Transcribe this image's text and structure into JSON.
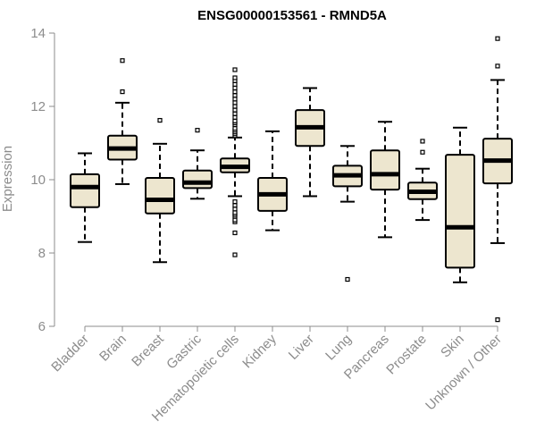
{
  "chart_data": {
    "type": "boxplot",
    "title": "ENSG00000153561 - RMND5A",
    "xlabel": "",
    "ylabel": "Expression",
    "ylim": [
      6,
      14
    ],
    "yticks": [
      6,
      8,
      10,
      12,
      14
    ],
    "box_fill": "#ede6cf",
    "box_stroke": "#000000",
    "categories": [
      "Bladder",
      "Brain",
      "Breast",
      "Gastric",
      "Hematopoietic cells",
      "Kidney",
      "Liver",
      "Lung",
      "Pancreas",
      "Prostate",
      "Skin",
      "Unknown / Other"
    ],
    "boxes": [
      {
        "name": "Bladder",
        "whisker_low": 8.3,
        "q1": 9.25,
        "median": 9.8,
        "q3": 10.15,
        "whisker_high": 10.72,
        "outliers": []
      },
      {
        "name": "Brain",
        "whisker_low": 9.88,
        "q1": 10.55,
        "median": 10.85,
        "q3": 11.2,
        "whisker_high": 12.1,
        "outliers": [
          12.4,
          13.25
        ]
      },
      {
        "name": "Breast",
        "whisker_low": 7.75,
        "q1": 9.08,
        "median": 9.45,
        "q3": 10.05,
        "whisker_high": 10.98,
        "outliers": [
          11.62
        ]
      },
      {
        "name": "Gastric",
        "whisker_low": 9.48,
        "q1": 9.77,
        "median": 9.92,
        "q3": 10.25,
        "whisker_high": 10.8,
        "outliers": [
          11.35
        ]
      },
      {
        "name": "Hematopoietic cells",
        "whisker_low": 9.55,
        "q1": 10.2,
        "median": 10.35,
        "q3": 10.58,
        "whisker_high": 11.15,
        "outliers": [
          7.95,
          8.55,
          8.85,
          8.9,
          9.0,
          9.05,
          9.1,
          9.2,
          9.3,
          9.4,
          11.2,
          11.25,
          11.3,
          11.35,
          11.4,
          11.5,
          11.55,
          11.6,
          11.7,
          11.8,
          11.9,
          12.0,
          12.1,
          12.2,
          12.3,
          12.4,
          12.5,
          12.6,
          12.7,
          12.78,
          13.0
        ]
      },
      {
        "name": "Kidney",
        "whisker_low": 8.62,
        "q1": 9.15,
        "median": 9.6,
        "q3": 10.05,
        "whisker_high": 11.32,
        "outliers": []
      },
      {
        "name": "Liver",
        "whisker_low": 9.55,
        "q1": 10.92,
        "median": 11.43,
        "q3": 11.9,
        "whisker_high": 12.5,
        "outliers": []
      },
      {
        "name": "Lung",
        "whisker_low": 9.4,
        "q1": 9.82,
        "median": 10.12,
        "q3": 10.38,
        "whisker_high": 10.92,
        "outliers": [
          7.28
        ]
      },
      {
        "name": "Pancreas",
        "whisker_low": 8.43,
        "q1": 9.73,
        "median": 10.15,
        "q3": 10.8,
        "whisker_high": 11.58,
        "outliers": []
      },
      {
        "name": "Prostate",
        "whisker_low": 8.9,
        "q1": 9.47,
        "median": 9.67,
        "q3": 9.92,
        "whisker_high": 10.3,
        "outliers": [
          10.75,
          11.05
        ]
      },
      {
        "name": "Skin",
        "whisker_low": 7.2,
        "q1": 7.6,
        "median": 8.7,
        "q3": 10.68,
        "whisker_high": 11.42,
        "outliers": []
      },
      {
        "name": "Unknown / Other",
        "whisker_low": 8.27,
        "q1": 9.9,
        "median": 10.52,
        "q3": 11.12,
        "whisker_high": 12.72,
        "outliers": [
          6.18,
          13.1,
          13.85
        ]
      }
    ]
  }
}
